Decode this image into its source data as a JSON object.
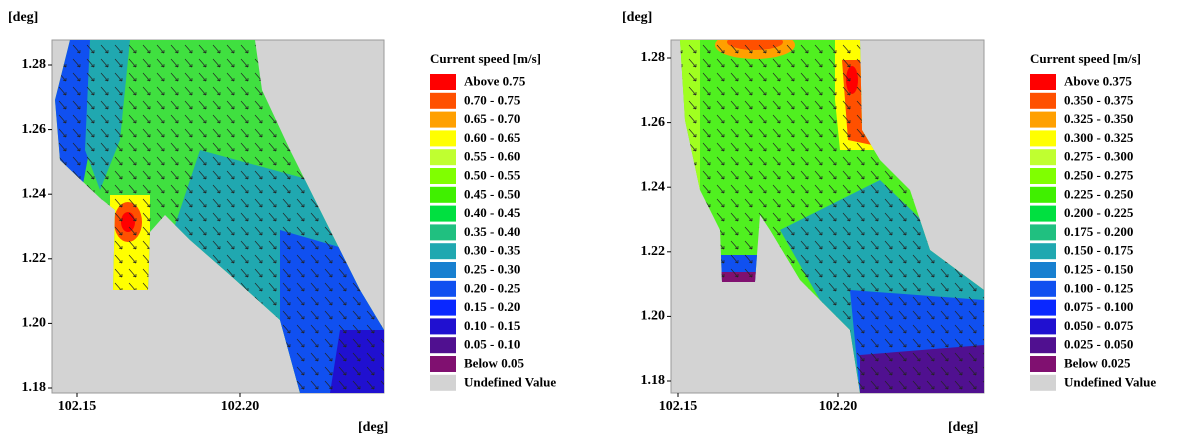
{
  "panels": [
    {
      "y_unit": "[deg]",
      "x_unit": "[deg]",
      "yticks": [
        "1.28",
        "1.26",
        "1.24",
        "1.22",
        "1.20",
        "1.18"
      ],
      "xticks": [
        "102.15",
        "102.20"
      ],
      "legend": {
        "title": "Current speed [m/s]",
        "entries": [
          {
            "label": "Above 0.75",
            "color": "#ff0000"
          },
          {
            "label": "0.70 - 0.75",
            "color": "#ff5000"
          },
          {
            "label": "0.65 - 0.70",
            "color": "#ffa000"
          },
          {
            "label": "0.60 - 0.65",
            "color": "#ffff00"
          },
          {
            "label": "0.55 - 0.60",
            "color": "#c0ff30"
          },
          {
            "label": "0.50 - 0.55",
            "color": "#80ff00"
          },
          {
            "label": "0.45 - 0.50",
            "color": "#40f000"
          },
          {
            "label": "0.40 - 0.45",
            "color": "#00e040"
          },
          {
            "label": "0.35 - 0.40",
            "color": "#20c080"
          },
          {
            "label": "0.30 - 0.35",
            "color": "#20a8b0"
          },
          {
            "label": "0.25 - 0.30",
            "color": "#1880d0"
          },
          {
            "label": "0.20 - 0.25",
            "color": "#1050f0"
          },
          {
            "label": "0.15 - 0.20",
            "color": "#0a28ff"
          },
          {
            "label": "0.10 - 0.15",
            "color": "#2010d0"
          },
          {
            "label": "0.05 - 0.10",
            "color": "#501090"
          },
          {
            "label": "Below 0.05",
            "color": "#801070"
          },
          {
            "label": "Undefined Value",
            "color": "#d3d3d3"
          }
        ]
      }
    },
    {
      "y_unit": "[deg]",
      "x_unit": "[deg]",
      "yticks": [
        "1.28",
        "1.26",
        "1.24",
        "1.22",
        "1.20",
        "1.18"
      ],
      "xticks": [
        "102.15",
        "102.20"
      ],
      "legend": {
        "title": "Current speed [m/s]",
        "entries": [
          {
            "label": "Above 0.375",
            "color": "#ff0000"
          },
          {
            "label": "0.350 - 0.375",
            "color": "#ff5000"
          },
          {
            "label": "0.325 - 0.350",
            "color": "#ffa000"
          },
          {
            "label": "0.300 - 0.325",
            "color": "#ffff00"
          },
          {
            "label": "0.275 - 0.300",
            "color": "#c0ff30"
          },
          {
            "label": "0.250 - 0.275",
            "color": "#80ff00"
          },
          {
            "label": "0.225 - 0.250",
            "color": "#40f000"
          },
          {
            "label": "0.200 - 0.225",
            "color": "#00e040"
          },
          {
            "label": "0.175 - 0.200",
            "color": "#20c080"
          },
          {
            "label": "0.150 - 0.175",
            "color": "#20a8b0"
          },
          {
            "label": "0.125 - 0.150",
            "color": "#1880d0"
          },
          {
            "label": "0.100 - 0.125",
            "color": "#1050f0"
          },
          {
            "label": "0.075 - 0.100",
            "color": "#0a28ff"
          },
          {
            "label": "0.050 - 0.075",
            "color": "#2010d0"
          },
          {
            "label": "0.025 - 0.050",
            "color": "#501090"
          },
          {
            "label": "Below 0.025",
            "color": "#801070"
          },
          {
            "label": "Undefined Value",
            "color": "#d3d3d3"
          }
        ]
      }
    }
  ]
}
